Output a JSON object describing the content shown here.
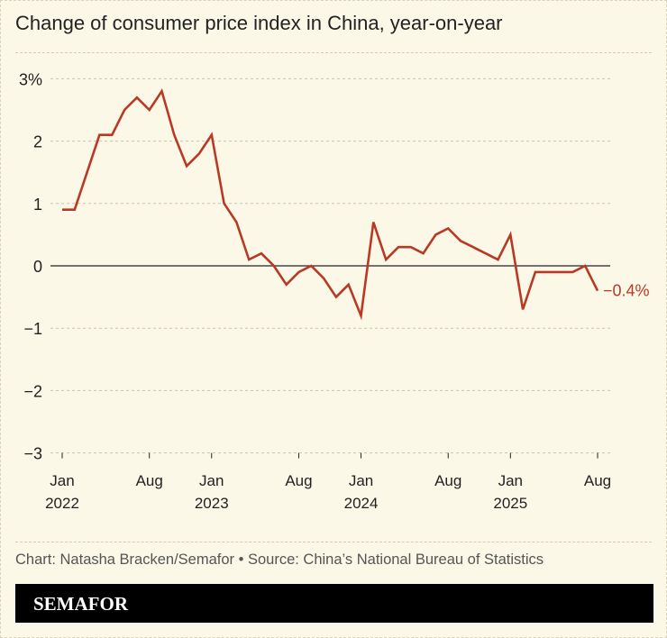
{
  "title": "Change of consumer price index in China, year-on-year",
  "credit": "Chart: Natasha Bracken/Semafor • Source: China’s National Bureau of Statistics",
  "brand": "SEMAFOR",
  "colors": {
    "line": "#b83a25",
    "background": "#fbf8e8",
    "zero": "#222222"
  },
  "chart_data": {
    "type": "line",
    "title": "Change of consumer price index in China, year-on-year",
    "x_start": "2022-01",
    "x_end": "2025-08",
    "frequency": "monthly",
    "ylim": [
      -3,
      3
    ],
    "y_ticks": [
      {
        "v": 3,
        "label": "3%"
      },
      {
        "v": 2,
        "label": "2"
      },
      {
        "v": 1,
        "label": "1"
      },
      {
        "v": 0,
        "label": "0"
      },
      {
        "v": -1,
        "label": "−1"
      },
      {
        "v": -2,
        "label": "−2"
      },
      {
        "v": -3,
        "label": "−3"
      }
    ],
    "x_ticks": [
      {
        "i": 0,
        "m": "Jan",
        "y": "2022"
      },
      {
        "i": 7,
        "m": "Aug",
        "y": ""
      },
      {
        "i": 12,
        "m": "Jan",
        "y": "2023"
      },
      {
        "i": 19,
        "m": "Aug",
        "y": ""
      },
      {
        "i": 24,
        "m": "Jan",
        "y": "2024"
      },
      {
        "i": 31,
        "m": "Aug",
        "y": ""
      },
      {
        "i": 36,
        "m": "Jan",
        "y": "2025"
      },
      {
        "i": 43,
        "m": "Aug",
        "y": ""
      }
    ],
    "grid": true,
    "values": [
      0.9,
      0.9,
      1.5,
      2.1,
      2.1,
      2.5,
      2.7,
      2.5,
      2.8,
      2.1,
      1.6,
      1.8,
      2.1,
      1.0,
      0.7,
      0.1,
      0.2,
      0.0,
      -0.3,
      -0.1,
      0.0,
      -0.2,
      -0.5,
      -0.3,
      -0.8,
      0.7,
      0.1,
      0.3,
      0.3,
      0.2,
      0.5,
      0.6,
      0.4,
      0.3,
      0.2,
      0.1,
      0.5,
      -0.7,
      -0.1,
      -0.1,
      -0.1,
      -0.1,
      0.0,
      -0.4
    ],
    "end_label": "−0.4%"
  }
}
